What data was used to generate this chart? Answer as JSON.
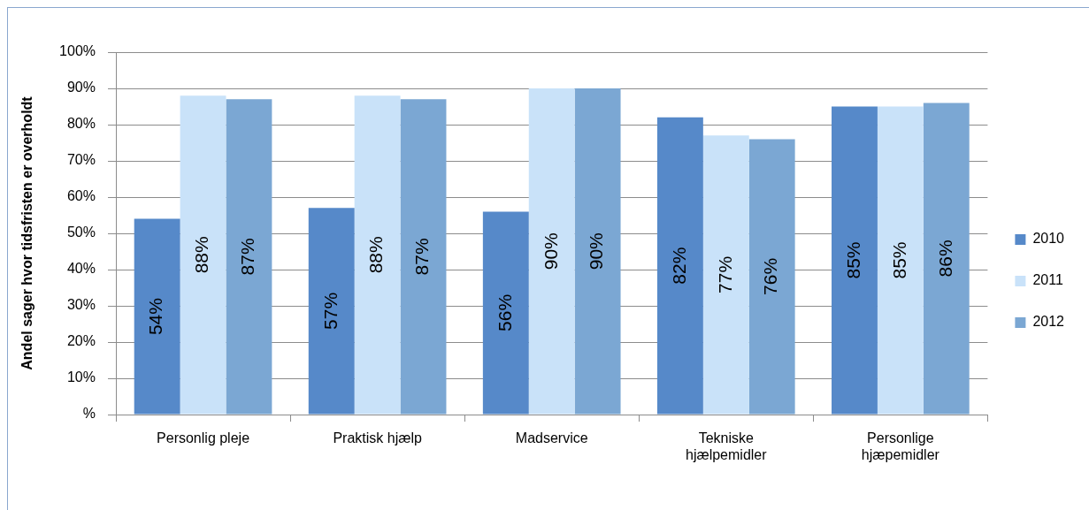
{
  "chart_data": {
    "type": "bar",
    "ylabel": "Andel sager hvor tidsfristen er overholdt",
    "categories": [
      "Personlig pleje",
      "Praktisk hjælp",
      "Madservice",
      "Tekniske hjælpemidler",
      "Personlige hjæpemidler"
    ],
    "series": [
      {
        "name": "2010",
        "color": "#5689c9",
        "values": [
          54,
          57,
          56,
          82,
          85
        ],
        "value_labels": [
          "54%",
          "57%",
          "56%",
          "82%",
          "85%"
        ]
      },
      {
        "name": "2011",
        "color": "#c9e2f9",
        "values": [
          88,
          88,
          90,
          77,
          85
        ],
        "value_labels": [
          "88%",
          "88%",
          "90%",
          "77%",
          "85%"
        ]
      },
      {
        "name": "2012",
        "color": "#7ba7d3",
        "values": [
          87,
          87,
          90,
          76,
          86
        ],
        "value_labels": [
          "87%",
          "87%",
          "90%",
          "76%",
          "86%"
        ]
      }
    ],
    "ylim": [
      0,
      100
    ],
    "yticks": [
      {
        "value": 0,
        "label": "%"
      },
      {
        "value": 10,
        "label": "10%"
      },
      {
        "value": 20,
        "label": "20%"
      },
      {
        "value": 30,
        "label": "30%"
      },
      {
        "value": 40,
        "label": "40%"
      },
      {
        "value": 50,
        "label": "50%"
      },
      {
        "value": 60,
        "label": "60%"
      },
      {
        "value": 70,
        "label": "70%"
      },
      {
        "value": 80,
        "label": "80%"
      },
      {
        "value": 90,
        "label": "90%"
      },
      {
        "value": 100,
        "label": "100%"
      }
    ],
    "grid": "y",
    "legend": "right"
  }
}
